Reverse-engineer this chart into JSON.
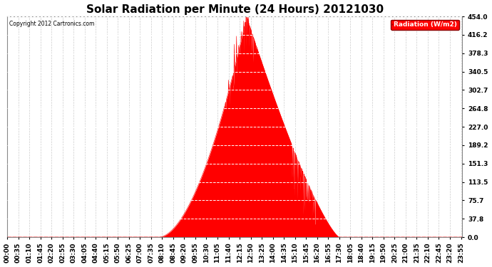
{
  "title": "Solar Radiation per Minute (24 Hours) 20121030",
  "copyright_text": "Copyright 2012 Cartronics.com",
  "legend_label": "Radiation (W/m2)",
  "yticks": [
    0.0,
    37.8,
    75.7,
    113.5,
    151.3,
    189.2,
    227.0,
    264.8,
    302.7,
    340.5,
    378.3,
    416.2,
    454.0
  ],
  "ymax": 454.0,
  "ymin": 0.0,
  "fill_color": "#FF0000",
  "line_color": "#FF0000",
  "background_color": "#FFFFFF",
  "grid_color_h": "#FFFFFF",
  "grid_color_v": "#CCCCCC",
  "dashed_zero_color": "#FF0000",
  "title_fontsize": 11,
  "axis_fontsize": 6.5,
  "sunrise_min": 480,
  "sunset_min": 1050,
  "peak_min": 757,
  "peak_val": 454.0,
  "secondary_peak_min": 930,
  "secondary_peak_val": 189.0
}
